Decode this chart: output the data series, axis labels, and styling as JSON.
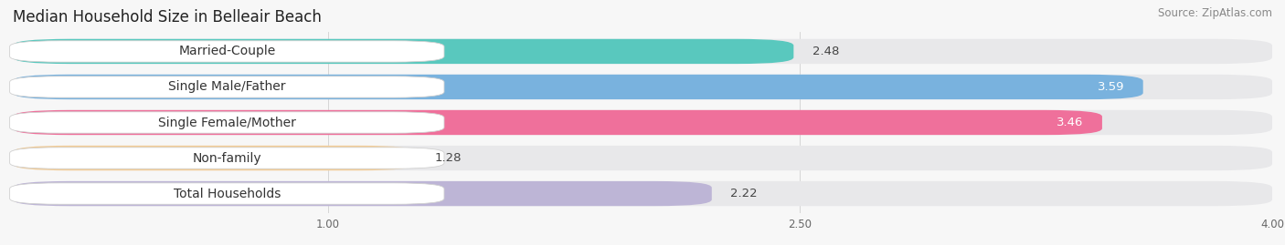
{
  "title": "Median Household Size in Belleair Beach",
  "source": "Source: ZipAtlas.com",
  "categories": [
    "Married-Couple",
    "Single Male/Father",
    "Single Female/Mother",
    "Non-family",
    "Total Households"
  ],
  "values": [
    2.48,
    3.59,
    3.46,
    1.28,
    2.22
  ],
  "bar_colors": [
    "#45c4b8",
    "#6aabdd",
    "#f06090",
    "#f5c98a",
    "#b8aed4"
  ],
  "bar_bg_color": "#e8e8ea",
  "xmin": 0.0,
  "xmax": 4.0,
  "xticks": [
    1.0,
    2.5,
    4.0
  ],
  "bg_color": "#f7f7f7",
  "title_fontsize": 12,
  "source_fontsize": 8.5,
  "label_fontsize": 10,
  "value_fontsize": 9.5,
  "bar_height": 0.7,
  "value_colors": [
    "#444444",
    "#ffffff",
    "#ffffff",
    "#444444",
    "#444444"
  ],
  "row_bg_colors": [
    "#f0fafa",
    "#eef5fc",
    "#fdeef5",
    "#fdf6ee",
    "#f3f0f8"
  ]
}
